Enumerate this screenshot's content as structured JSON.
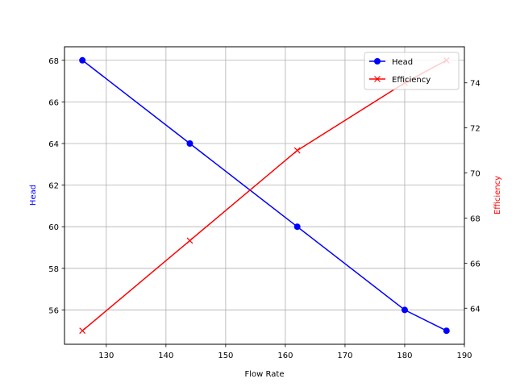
{
  "chart_data": {
    "type": "line",
    "title": "",
    "xlabel": "Flow Rate",
    "ylabel": "Head",
    "y2label": "Efficiency",
    "x": [
      126,
      144,
      162,
      180,
      187
    ],
    "series": [
      {
        "name": "Head",
        "axis": "left",
        "values": [
          68,
          64,
          60,
          56,
          55
        ],
        "color": "#0000ff",
        "marker": "o"
      },
      {
        "name": "Efficiency",
        "axis": "right",
        "values": [
          63,
          67,
          71,
          74,
          75
        ],
        "color": "#ff0000",
        "marker": "x"
      }
    ],
    "xlim": [
      123,
      190
    ],
    "ylim": [
      54.35,
      68.65
    ],
    "y2lim": [
      62.4,
      75.6
    ],
    "xticks": [
      130,
      140,
      150,
      160,
      170,
      180,
      190
    ],
    "yticks": [
      56,
      58,
      60,
      62,
      64,
      66,
      68
    ],
    "y2ticks": [
      64,
      66,
      68,
      70,
      72,
      74
    ],
    "grid": true,
    "legend_position": "upper right",
    "colors": {
      "head": "#0000ff",
      "efficiency": "#ff0000",
      "grid": "#b0b0b0"
    }
  }
}
